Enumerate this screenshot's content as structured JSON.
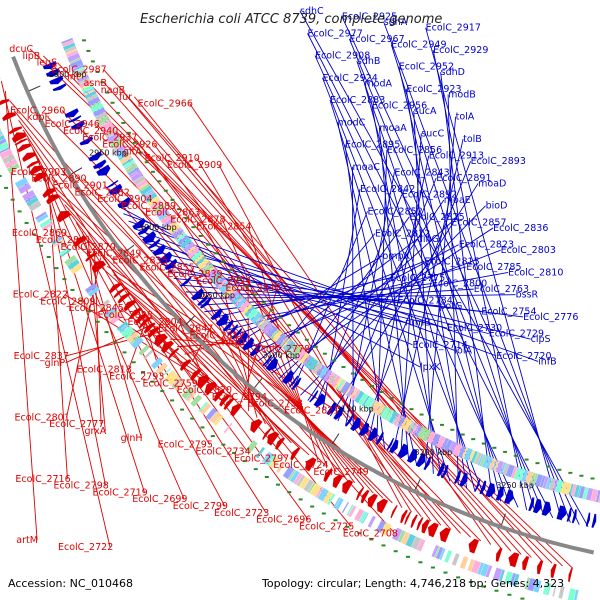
{
  "title": "Escherichia coli ATCC 8739, complete genome",
  "footer": {
    "accession": "Accession: NC_010468",
    "summary": "Topology: circular; Length: 4,746,218 bp; Genes: 4,323"
  },
  "colors": {
    "forward": "#dd0000",
    "reverse": "#0000cc",
    "backbone": "#888888",
    "tick_dot": "#2a8a2a"
  },
  "scale_ticks": [
    "3250 kbp",
    "3200 kbp",
    "3150 kbp",
    "3100 kbp",
    "3050 kbp",
    "3000 kbp",
    "2950 kbp",
    "2900 kbp"
  ],
  "forward_labels": [
    "dcuC",
    "lipB",
    "leuS",
    "EcolC_2987",
    "lnt",
    "asnB",
    "nagB",
    "fur",
    "EcolC_2966",
    "EcolC_2960",
    "kdpF",
    "EcolC_2946",
    "EcolC_2940",
    "EcolC_2937",
    "EcolC_2926",
    "gltA",
    "EcolC_2910",
    "EcolC_2909",
    "EcolC_2903",
    "EcolC_2890",
    "EcolC_2901",
    "EcolC_2882",
    "EcolC_2904",
    "EcolC_2889",
    "EcolC_2863",
    "EcolC_2878",
    "EcolC_2854",
    "EcolC_2869",
    "EcolC_2841",
    "EcolC_2870",
    "EcolC_2849",
    "EcolC_2835",
    "EcolC_2855",
    "EcolC_2839",
    "EcolC_2824",
    "EcolC_2840",
    "EcolC_2822",
    "EcolC_2809",
    "EcolC_2845",
    "EcolC_2828",
    "EcolC_2804",
    "EcolC_2847",
    "EcolC_2817",
    "rimO",
    "EcolC_2778",
    "EcolC_2837",
    "glnP",
    "EcolC_2818",
    "EcolC_2793",
    "EcolC_2759",
    "EcolC_2820",
    "EcolC_2794",
    "EcolC_2758",
    "EcolC_2821",
    "EcolC_2801",
    "EcolC_2777",
    "grxA",
    "glnH",
    "EcolC_2795",
    "EcolC_2734",
    "EcolC_2797",
    "EcolC_2724",
    "EcolC_2749",
    "EcolC_2716",
    "EcolC_2798",
    "EcolC_2719",
    "EcolC_2699",
    "EcolC_2799",
    "EcolC_2723",
    "EcolC_2696",
    "EcolC_2725",
    "EcolC_2708",
    "artM",
    "EcolC_2722"
  ],
  "reverse_labels": [
    "sdhC",
    "EcolC_2925",
    "sdhA",
    "EcolC_2917",
    "EcolC_2977",
    "EcolC_2967",
    "EcolC_2949",
    "EcolC_2929",
    "EcolC_2908",
    "sdhB",
    "EcolC_2952",
    "sdhD",
    "EcolC_2924",
    "modA",
    "EcolC_2923",
    "modB",
    "EcolC_2883",
    "EcolC_2956",
    "sucA",
    "tolA",
    "modC",
    "moaA",
    "sucC",
    "tolB",
    "EcolC_2895",
    "EcolC_2856",
    "EcolC_2913",
    "EcolC_2893",
    "moaC",
    "EcolC_2843",
    "EcolC_2891",
    "moaD",
    "EcolC_2842",
    "EcolC_2892",
    "moaE",
    "bioD",
    "EcolC_2852",
    "EcolC_2825",
    "EcolC_2857",
    "EcolC_2836",
    "EcolC_2812",
    "dinG",
    "EcolC_2823",
    "EcolC_2803",
    "ompX",
    "EcolC_2815",
    "EcolC_2785",
    "EcolC_2810",
    "EcolC_2775",
    "EcolC_2800",
    "EcolC_2763",
    "bssR",
    "EcolC_2784",
    "potG",
    "EcolC_2754",
    "EcolC_2776",
    "rumB",
    "EcolC_2730",
    "EcolC_2729",
    "clpS",
    "EcolC_2714",
    "lolA",
    "EcolC_2720",
    "ihfB",
    "lpxK"
  ]
}
